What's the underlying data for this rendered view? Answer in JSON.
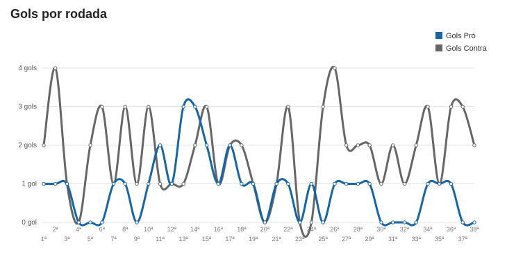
{
  "chart_data": {
    "type": "line",
    "title": "Gols por rodada",
    "xlabel": "",
    "ylabel": "",
    "ylim": [
      0,
      4
    ],
    "y_ticks": [
      {
        "value": 0,
        "label": "0 gol"
      },
      {
        "value": 1,
        "label": "1 gol"
      },
      {
        "value": 2,
        "label": "2 gols"
      },
      {
        "value": 3,
        "label": "3 gols"
      },
      {
        "value": 4,
        "label": "4 gols"
      }
    ],
    "categories": [
      "1ª",
      "2ª",
      "3ª",
      "4ª",
      "5ª",
      "6ª",
      "7ª",
      "8ª",
      "9ª",
      "10ª",
      "11ª",
      "12ª",
      "13ª",
      "14ª",
      "15ª",
      "16ª",
      "17ª",
      "18ª",
      "19ª",
      "20ª",
      "21ª",
      "22ª",
      "23ª",
      "24ª",
      "25ª",
      "26ª",
      "27ª",
      "28ª",
      "29ª",
      "30ª",
      "31ª",
      "32ª",
      "33ª",
      "34ª",
      "35ª",
      "36ª",
      "37ª",
      "38ª"
    ],
    "grid": true,
    "legend_position": "top-right",
    "series": [
      {
        "name": "Gols Pró",
        "color": "#1565a8",
        "values": [
          1,
          1,
          1,
          0,
          0,
          0,
          1,
          1,
          0,
          1,
          2,
          1,
          3,
          3,
          2,
          1,
          2,
          1,
          1,
          0,
          1,
          1,
          0,
          1,
          0,
          1,
          1,
          1,
          1,
          0,
          0,
          0,
          0,
          1,
          1,
          1,
          0,
          0
        ]
      },
      {
        "name": "Gols Contra",
        "color": "#666666",
        "values": [
          2,
          4,
          1,
          0,
          2,
          3,
          1,
          3,
          1,
          3,
          1,
          1,
          1,
          2,
          3,
          1,
          2,
          2,
          1,
          0,
          1,
          3,
          0,
          0,
          3,
          4,
          2,
          2,
          2,
          1,
          2,
          1,
          2,
          3,
          1,
          3,
          3,
          2
        ]
      }
    ]
  }
}
